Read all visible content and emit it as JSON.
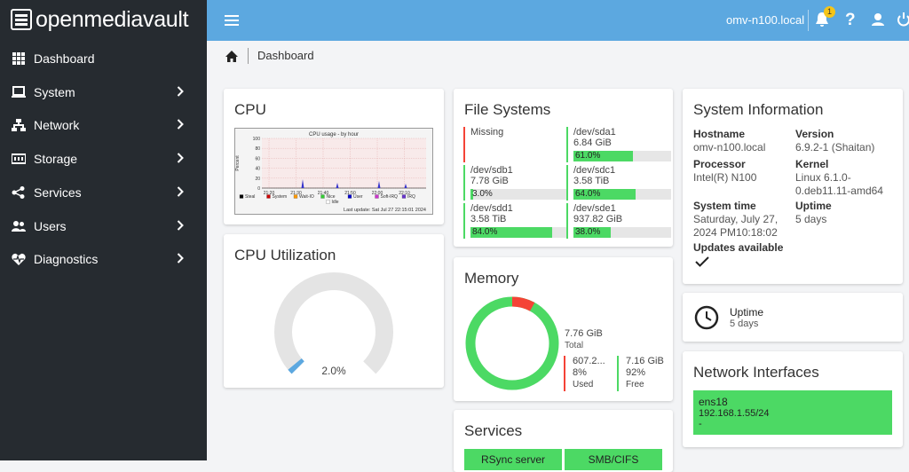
{
  "sidebar": {
    "brand": "openmediavault",
    "items": [
      "Dashboard",
      "System",
      "Network",
      "Storage",
      "Services",
      "Users",
      "Diagnostics"
    ]
  },
  "topbar": {
    "hostname": "omv-n100.local",
    "notifications": "1"
  },
  "breadcrumb": "Dashboard",
  "cpu": {
    "title": "CPU",
    "graph": {
      "title": "CPU usage - by hour",
      "y_label": "Percent",
      "yticks": [
        "100",
        "80",
        "60",
        "40",
        "20",
        "0"
      ],
      "xticks": [
        "21:20",
        "21:30",
        "21:40",
        "21:50",
        "22:00",
        "22:10"
      ],
      "legend": [
        {
          "name": "Steal",
          "color": "#000000"
        },
        {
          "name": "System",
          "color": "#cc0000"
        },
        {
          "name": "Wait-IO",
          "color": "#ff9900"
        },
        {
          "name": "Nice",
          "color": "#33cc33"
        },
        {
          "name": "User",
          "color": "#0000cc"
        },
        {
          "name": "Soft-IRQ",
          "color": "#cc33cc"
        },
        {
          "name": "IRQ",
          "color": "#6633cc"
        },
        {
          "name": "Idle",
          "color": "#ffffff"
        }
      ],
      "last_update": "Last update: Sat Jul 27 22:15:01 2024"
    }
  },
  "cpu_utilization": {
    "title": "CPU Utilization",
    "value": "2.0%"
  },
  "file_systems": {
    "title": "File Systems",
    "items": [
      {
        "device": "Missing"
      },
      {
        "device": "/dev/sda1",
        "size": "6.84 GiB",
        "usage": "61.0%"
      },
      {
        "device": "/dev/sdb1",
        "size": "7.78 GiB",
        "usage": "3.0%"
      },
      {
        "device": "/dev/sdc1",
        "size": "3.58 TiB",
        "usage": "64.0%"
      },
      {
        "device": "/dev/sdd1",
        "size": "3.58 TiB",
        "usage": "84.0%"
      },
      {
        "device": "/dev/sde1",
        "size": "937.82 GiB",
        "usage": "38.0%"
      }
    ]
  },
  "memory": {
    "title": "Memory",
    "total": "7.76 GiB",
    "total_label": "Total",
    "used": "607.2...",
    "used_percent": "8%",
    "used_label": "Used",
    "free": "7.16 GiB",
    "free_percent": "92%",
    "free_label": "Free"
  },
  "services": {
    "title": "Services",
    "items": [
      "RSync server",
      "SMB/CIFS"
    ]
  },
  "system_information": {
    "title": "System Information",
    "fields": [
      {
        "label": "Hostname",
        "value": "omv-n100.local"
      },
      {
        "label": "Version",
        "value": "6.9.2-1 (Shaitan)"
      },
      {
        "label": "Processor",
        "value": "Intel(R) N100"
      },
      {
        "label": "Kernel",
        "value": "Linux 6.1.0-0.deb11.11-amd64"
      },
      {
        "label": "System time",
        "value": "Saturday, July 27, 2024 PM10:18:02"
      },
      {
        "label": "Uptime",
        "value": "5 days"
      },
      {
        "label": "Updates available"
      }
    ]
  },
  "uptime": {
    "title": "Uptime",
    "value": "5 days"
  },
  "network_interfaces": {
    "title": "Network Interfaces",
    "items": [
      {
        "name": "ens18",
        "address": "192.168.1.55/24",
        "extra": "-"
      }
    ]
  }
}
